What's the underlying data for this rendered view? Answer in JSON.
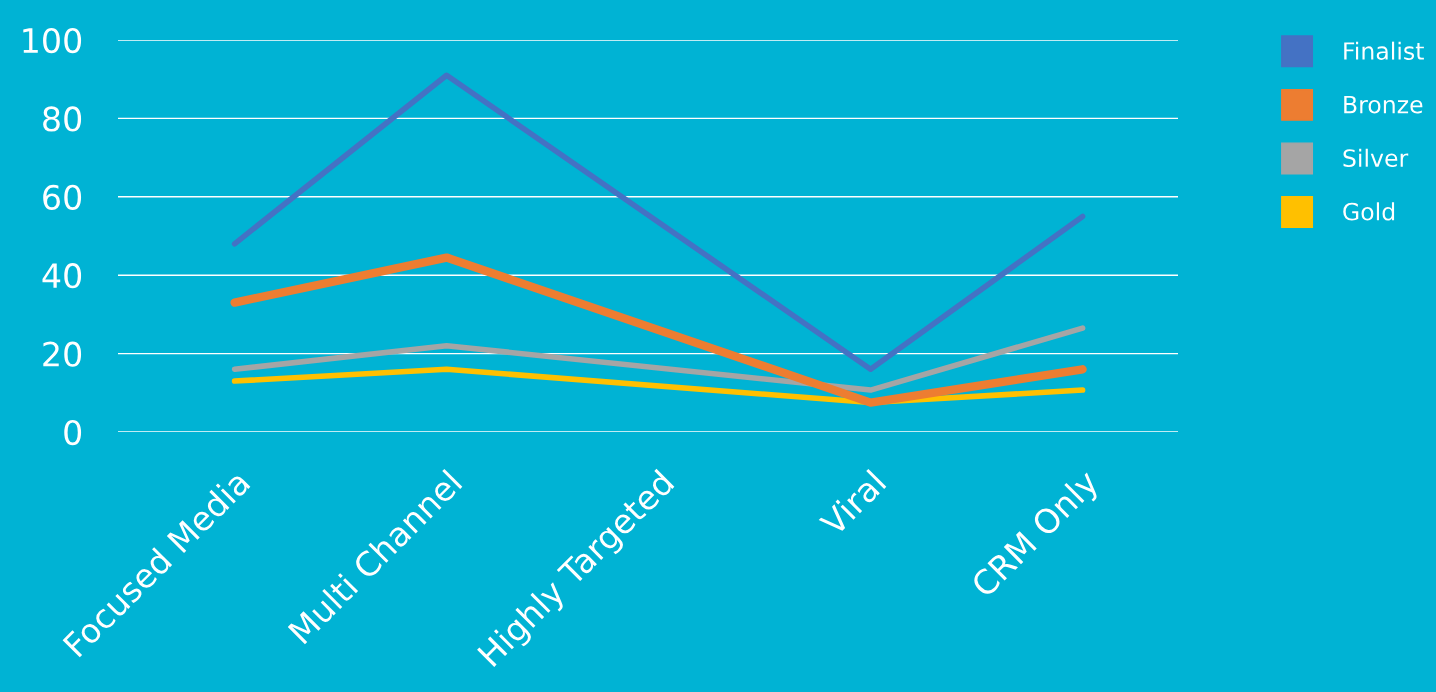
{
  "chart_data": {
    "type": "line",
    "categories": [
      "Focused Media",
      "Multi Channel",
      "Highly Targeted",
      "Viral",
      "CRM Only"
    ],
    "series": [
      {
        "name": "Finalist",
        "color": "#4472c4",
        "values": [
          48,
          91,
          null,
          16,
          55
        ]
      },
      {
        "name": "Bronze",
        "color": "#ed7d31",
        "values": [
          33,
          44.5,
          null,
          7.5,
          16
        ]
      },
      {
        "name": "Silver",
        "color": "#a5a5a5",
        "values": [
          16,
          22,
          null,
          10.7,
          26.5
        ]
      },
      {
        "name": "Gold",
        "color": "#ffc000",
        "values": [
          13,
          16,
          null,
          7.5,
          10.7
        ]
      }
    ],
    "ylim": [
      0,
      100
    ],
    "yticks": [
      0,
      20,
      40,
      60,
      80,
      100
    ],
    "grid": "y",
    "legend": "right",
    "marker": "none",
    "line_style": "solid"
  }
}
